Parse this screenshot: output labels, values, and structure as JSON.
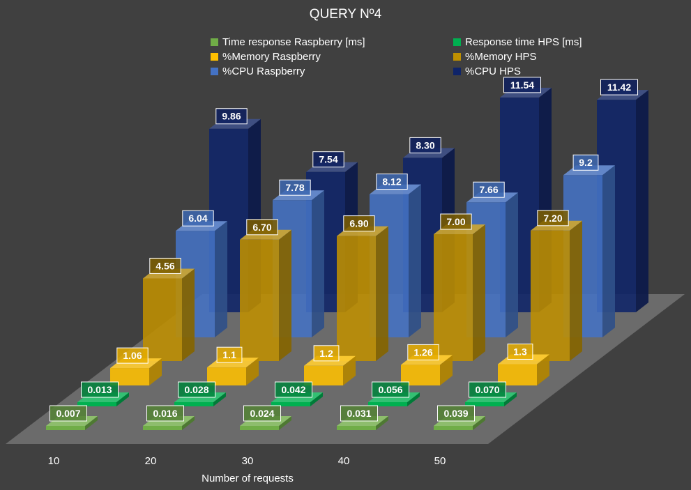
{
  "chart_data": {
    "type": "bar",
    "title": "QUERY Nº4",
    "xlabel": "Number of requests",
    "ylabel": "",
    "categories": [
      "10",
      "20",
      "30",
      "40",
      "50"
    ],
    "legend_position": "top",
    "grid": false,
    "series": [
      {
        "name": "Time response Raspberry [ms]",
        "color": "#70ad47",
        "values": [
          0.007,
          0.016,
          0.024,
          0.031,
          0.039
        ],
        "labels": [
          "0.007",
          "0.016",
          "0.024",
          "0.031",
          "0.039"
        ]
      },
      {
        "name": "Response time HPS [ms]",
        "color": "#00b050",
        "values": [
          0.013,
          0.028,
          0.042,
          0.056,
          0.07
        ],
        "labels": [
          "0.013",
          "0.028",
          "0.042",
          "0.056",
          "0.070"
        ]
      },
      {
        "name": "%Memory Raspberry",
        "color": "#ffc000",
        "values": [
          1.06,
          1.1,
          1.2,
          1.26,
          1.3
        ],
        "labels": [
          "1.06",
          "1.1",
          "1.2",
          "1.26",
          "1.3"
        ]
      },
      {
        "name": "%Memory HPS",
        "color": "#bf9000",
        "values": [
          4.56,
          6.7,
          6.9,
          7.0,
          7.2
        ],
        "labels": [
          "4.56",
          "6.70",
          "6.90",
          "7.00",
          "7.20"
        ]
      },
      {
        "name": "%CPU Raspberry",
        "color": "#4472c4",
        "values": [
          6.04,
          7.78,
          8.12,
          7.66,
          9.2
        ],
        "labels": [
          "6.04",
          "7.78",
          "8.12",
          "7.66",
          "9.2"
        ]
      },
      {
        "name": "%CPU HPS",
        "color": "#0f2469",
        "values": [
          9.86,
          7.54,
          8.3,
          11.54,
          11.42
        ],
        "labels": [
          "9.86",
          "7.54",
          "8.30",
          "11.54",
          "11.42"
        ]
      }
    ]
  }
}
